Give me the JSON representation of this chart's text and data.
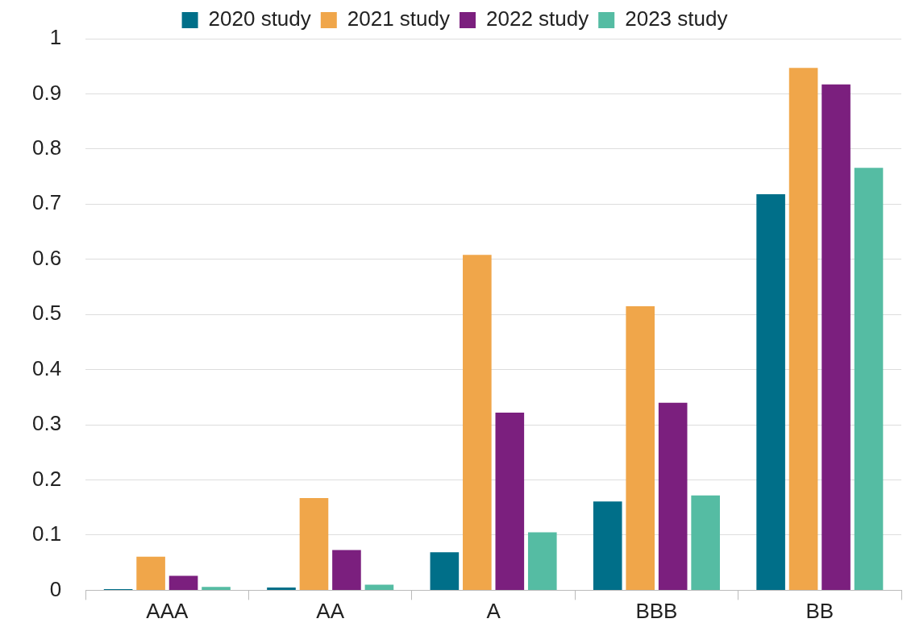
{
  "chart_data": {
    "type": "bar",
    "categories": [
      "AAA",
      "AA",
      "A",
      "BBB",
      "BB"
    ],
    "series": [
      {
        "name": "2020 study",
        "color": "#006f89",
        "values": [
          0.002,
          0.005,
          0.069,
          0.161,
          0.718
        ]
      },
      {
        "name": "2021 study",
        "color": "#f0a64a",
        "values": [
          0.061,
          0.167,
          0.608,
          0.515,
          0.947
        ]
      },
      {
        "name": "2022 study",
        "color": "#7b1f7e",
        "values": [
          0.026,
          0.073,
          0.322,
          0.34,
          0.917
        ]
      },
      {
        "name": "2023 study",
        "color": "#55bca3",
        "values": [
          0.006,
          0.01,
          0.105,
          0.172,
          0.766
        ]
      }
    ],
    "ylim": [
      0,
      1
    ],
    "yticks": [
      0,
      0.1,
      0.2,
      0.3,
      0.4,
      0.5,
      0.6,
      0.7,
      0.8,
      0.9,
      1
    ],
    "grid": "y",
    "legend": "top"
  }
}
